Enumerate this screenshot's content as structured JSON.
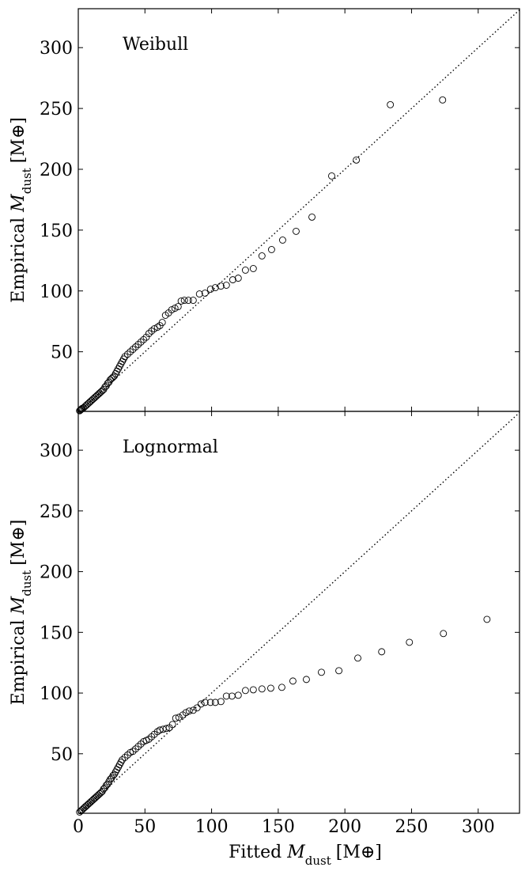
{
  "chart_data": [
    {
      "type": "scatter",
      "title": "Weibull",
      "ylabel": {
        "prefix": "Empirical ",
        "symbol": "M",
        "subscript": "dust",
        "unit": "[M⊕]"
      },
      "x": [
        273.3,
        234.1,
        208.6,
        190.1,
        175.3,
        163.4,
        153.3,
        145.0,
        137.8,
        131.3,
        125.4,
        120.0,
        115.9,
        111.1,
        107.0,
        102.8,
        99.2,
        95.1,
        90.9,
        86.2,
        82.6,
        79.6,
        77.2,
        74.9,
        72.5,
        70.1,
        67.7,
        65.4,
        63.0,
        61.2,
        59.4,
        57.0,
        55,
        53,
        51,
        49,
        47,
        45,
        43,
        41,
        39,
        37,
        35,
        34,
        33,
        32,
        31,
        30,
        29,
        28,
        27,
        26,
        25,
        24,
        23,
        22,
        21,
        20,
        19,
        18,
        17,
        16,
        15,
        14,
        13,
        12,
        11,
        10,
        9,
        8,
        7,
        6,
        5,
        4,
        3,
        2.5,
        2,
        1.5,
        1
      ],
      "values": [
        257.0,
        253.1,
        207.6,
        194.5,
        160.7,
        149.0,
        141.8,
        134.0,
        128.8,
        118.4,
        117.1,
        110.5,
        109.2,
        104.7,
        104.0,
        102.7,
        101.4,
        98.2,
        97.5,
        92.3,
        92.3,
        92.3,
        91.7,
        87.1,
        85.8,
        84.5,
        81.9,
        80.0,
        74.1,
        71.5,
        70.2,
        68.9,
        67,
        65,
        62,
        60,
        58,
        56,
        54,
        52,
        50,
        48,
        46,
        44,
        42,
        40,
        38,
        36,
        34,
        32,
        30,
        29,
        28,
        27,
        25,
        24,
        22,
        21,
        19,
        18,
        17,
        16,
        15,
        14,
        13,
        12,
        11,
        10,
        9,
        8,
        7,
        6,
        5,
        4,
        3.5,
        3,
        2.5,
        2,
        1.5
      ],
      "color": "#000000",
      "xlim": [
        0,
        331
      ],
      "ylim": [
        1,
        332
      ],
      "xticks": [
        0,
        50,
        100,
        150,
        200,
        250,
        300
      ],
      "yticks": [
        50,
        100,
        150,
        200,
        250,
        300
      ],
      "show_xtick_labels": false,
      "reference_line": true
    },
    {
      "type": "scatter",
      "title": "Lognormal",
      "ylabel": {
        "prefix": "Empirical ",
        "symbol": "M",
        "subscript": "dust",
        "unit": "[M⊕]"
      },
      "xlabel": {
        "prefix": "Fitted ",
        "symbol": "M",
        "subscript": "dust",
        "unit": "[M⊕]"
      },
      "x": [
        306.6,
        273.9,
        248.4,
        227.6,
        209.7,
        195.5,
        182.4,
        171.1,
        161.0,
        152.7,
        144.4,
        137.8,
        131.3,
        125.4,
        120.0,
        115.3,
        111.1,
        107.0,
        102.8,
        99.2,
        95.1,
        92.1,
        89.1,
        86.2,
        83.2,
        80.8,
        78.4,
        75.5,
        73.1,
        70.7,
        68.3,
        66.0,
        63.6,
        61.2,
        59.4,
        57,
        55,
        53,
        51,
        49,
        47,
        45,
        43,
        41,
        39,
        37,
        35,
        33,
        32,
        31,
        30,
        29,
        28,
        27,
        26,
        25,
        24,
        23,
        22,
        21,
        20,
        19,
        18,
        17,
        16,
        15,
        14,
        13,
        12,
        11,
        10,
        9,
        8,
        7,
        6,
        5,
        4,
        3,
        2,
        1
      ],
      "values": [
        160.7,
        149.0,
        141.8,
        134.0,
        128.8,
        118.4,
        117.1,
        111.2,
        109.9,
        104.7,
        104.0,
        103.4,
        102.7,
        102.1,
        98.2,
        97.5,
        97.5,
        93.0,
        92.3,
        92.3,
        92.3,
        91.0,
        87.8,
        85.8,
        85.2,
        83.9,
        81.9,
        80.0,
        79.3,
        74.1,
        71.5,
        70.8,
        70.2,
        69.5,
        68.2,
        66,
        64,
        62,
        61,
        60,
        58,
        56,
        54,
        52,
        51,
        49,
        47,
        45,
        43,
        41,
        39,
        37,
        35,
        33,
        32,
        30,
        29,
        27,
        25,
        24,
        22,
        21,
        19,
        18,
        17,
        16,
        15,
        14,
        13,
        12,
        11,
        10,
        9,
        8,
        7,
        6,
        5,
        4,
        3,
        2
      ],
      "color": "#000000",
      "xlim": [
        0,
        331
      ],
      "ylim": [
        1,
        332
      ],
      "xticks": [
        0,
        50,
        100,
        150,
        200,
        250,
        300
      ],
      "yticks": [
        50,
        100,
        150,
        200,
        250,
        300
      ],
      "show_xtick_labels": true,
      "reference_line": true
    }
  ]
}
